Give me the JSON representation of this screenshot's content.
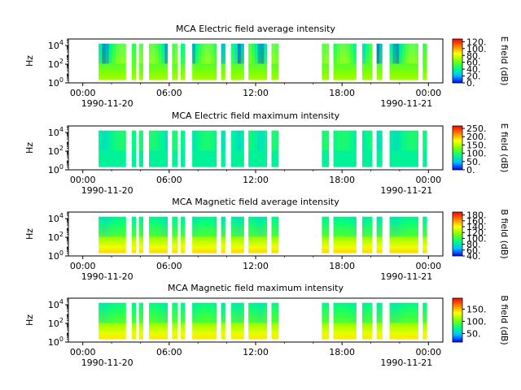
{
  "chart_data": [
    {
      "type": "heatmap",
      "title": "MCA  Electric field average intensity",
      "ylabel": "Hz",
      "yscale": "log",
      "yticks": [
        {
          "exp": 0,
          "label": "10^0"
        },
        {
          "exp": 2,
          "label": "10^2"
        },
        {
          "exp": 4,
          "label": "10^4"
        }
      ],
      "ylim_exp": [
        0,
        4.7
      ],
      "x_tick_labels": [
        "00:00",
        "06:00",
        "12:00",
        "18:00",
        "00:00"
      ],
      "x_tick_hours": [
        0,
        6,
        12,
        18,
        24
      ],
      "x_date_labels": [
        "1990-11-20",
        "1990-11-21"
      ],
      "xlim_hours": [
        -1,
        25
      ],
      "colorbar": {
        "label": "E field (dB)",
        "min": 0,
        "max": 128,
        "ticks": [
          "0.",
          "20.",
          "40.",
          "60.",
          "80.",
          "100.",
          "120."
        ],
        "tick_values": [
          0,
          20,
          40,
          60,
          80,
          100,
          120
        ]
      },
      "data_y_exp": [
        0.3,
        4.2
      ],
      "level_base": 0.55,
      "level_top": 0.3,
      "level_varia": 0.35,
      "colormap": [
        "#0000ff",
        "#00bfff",
        "#00ff80",
        "#80ff00",
        "#ffff00",
        "#ff8000",
        "#ff0000"
      ],
      "segments_hours": [
        [
          1.1,
          3.0
        ],
        [
          3.4,
          3.7
        ],
        [
          3.9,
          4.2
        ],
        [
          4.6,
          5.9
        ],
        [
          6.2,
          6.6
        ],
        [
          6.8,
          7.1
        ],
        [
          7.6,
          9.3
        ],
        [
          9.6,
          9.9
        ],
        [
          10.3,
          11.2
        ],
        [
          11.5,
          12.8
        ],
        [
          13.1,
          13.6
        ],
        [
          16.6,
          17.1
        ],
        [
          17.4,
          19.0
        ],
        [
          19.4,
          20.1
        ],
        [
          20.4,
          20.8
        ],
        [
          21.3,
          23.3
        ],
        [
          23.6,
          23.9
        ]
      ]
    },
    {
      "type": "heatmap",
      "title": "MCA  Electric field maximum intensity",
      "ylabel": "Hz",
      "yscale": "log",
      "yticks": [
        {
          "exp": 0,
          "label": "10^0"
        },
        {
          "exp": 2,
          "label": "10^2"
        },
        {
          "exp": 4,
          "label": "10^4"
        }
      ],
      "ylim_exp": [
        0,
        4.7
      ],
      "x_tick_labels": [
        "00:00",
        "06:00",
        "12:00",
        "18:00",
        "00:00"
      ],
      "x_tick_hours": [
        0,
        6,
        12,
        18,
        24
      ],
      "x_date_labels": [
        "1990-11-20",
        "1990-11-21"
      ],
      "xlim_hours": [
        -1,
        25
      ],
      "colorbar": {
        "label": "E field (dB)",
        "min": 0,
        "max": 265,
        "ticks": [
          "0.",
          "50.",
          "100.",
          "150.",
          "200.",
          "250."
        ],
        "tick_values": [
          0,
          50,
          100,
          150,
          200,
          250
        ]
      },
      "data_y_exp": [
        0.3,
        4.2
      ],
      "level_base": 0.3,
      "level_top": 0.3,
      "level_varia": 0.12,
      "colormap": [
        "#0000ff",
        "#00bfff",
        "#00ff80",
        "#80ff00",
        "#ffff00",
        "#ff8000",
        "#ff0000"
      ],
      "segments_hours": [
        [
          1.1,
          3.0
        ],
        [
          3.4,
          3.7
        ],
        [
          3.9,
          4.2
        ],
        [
          4.6,
          5.9
        ],
        [
          6.2,
          6.6
        ],
        [
          6.8,
          7.1
        ],
        [
          7.6,
          9.3
        ],
        [
          9.6,
          9.9
        ],
        [
          10.3,
          11.2
        ],
        [
          11.5,
          12.8
        ],
        [
          13.1,
          13.6
        ],
        [
          16.6,
          17.1
        ],
        [
          17.4,
          19.0
        ],
        [
          19.4,
          20.1
        ],
        [
          20.4,
          20.8
        ],
        [
          21.3,
          23.3
        ],
        [
          23.6,
          23.9
        ]
      ]
    },
    {
      "type": "heatmap",
      "title": "MCA  Magnetic field average intensity",
      "ylabel": "Hz",
      "yscale": "log",
      "yticks": [
        {
          "exp": 0,
          "label": "10^0"
        },
        {
          "exp": 2,
          "label": "10^2"
        },
        {
          "exp": 4,
          "label": "10^4"
        }
      ],
      "ylim_exp": [
        0,
        4.7
      ],
      "x_tick_labels": [
        "00:00",
        "06:00",
        "12:00",
        "18:00",
        "00:00"
      ],
      "x_tick_hours": [
        0,
        6,
        12,
        18,
        24
      ],
      "x_date_labels": [
        "1990-11-20",
        "1990-11-21"
      ],
      "xlim_hours": [
        -1,
        25
      ],
      "colorbar": {
        "label": "B field (dB)",
        "min": 40,
        "max": 190,
        "ticks": [
          "40.",
          "60.",
          "80.",
          "100.",
          "120.",
          "140.",
          "160.",
          "180."
        ],
        "tick_values": [
          40,
          60,
          80,
          100,
          120,
          140,
          160,
          180
        ]
      },
      "data_y_exp": [
        0.3,
        4.2
      ],
      "level_base": 0.72,
      "level_top": 0.28,
      "level_varia": 0.06,
      "colormap": [
        "#0000ff",
        "#00bfff",
        "#00ff80",
        "#80ff00",
        "#ffff00",
        "#ff8000",
        "#ff0000"
      ],
      "segments_hours": [
        [
          1.1,
          3.0
        ],
        [
          3.4,
          3.7
        ],
        [
          3.9,
          4.2
        ],
        [
          4.6,
          5.9
        ],
        [
          6.2,
          6.6
        ],
        [
          6.8,
          7.1
        ],
        [
          7.6,
          9.3
        ],
        [
          9.6,
          9.9
        ],
        [
          10.3,
          11.2
        ],
        [
          11.5,
          12.8
        ],
        [
          13.1,
          13.6
        ],
        [
          16.6,
          17.1
        ],
        [
          17.4,
          19.0
        ],
        [
          19.4,
          20.1
        ],
        [
          20.4,
          20.8
        ],
        [
          21.3,
          23.3
        ],
        [
          23.6,
          23.9
        ]
      ]
    },
    {
      "type": "heatmap",
      "title": "MCA  Magnetic field maximum intensity",
      "ylabel": "Hz",
      "yscale": "log",
      "yticks": [
        {
          "exp": 0,
          "label": "10^0"
        },
        {
          "exp": 2,
          "label": "10^2"
        },
        {
          "exp": 4,
          "label": "10^4"
        }
      ],
      "ylim_exp": [
        0,
        4.7
      ],
      "x_tick_labels": [
        "00:00",
        "06:00",
        "12:00",
        "18:00",
        "00:00"
      ],
      "x_tick_hours": [
        0,
        6,
        12,
        18,
        24
      ],
      "x_date_labels": [
        "1990-11-20",
        "1990-11-21"
      ],
      "xlim_hours": [
        -1,
        25
      ],
      "colorbar": {
        "label": "B field (dB)",
        "min": 15,
        "max": 195,
        "ticks": [
          "50.",
          "100.",
          "150."
        ],
        "tick_values": [
          50,
          100,
          150
        ]
      },
      "data_y_exp": [
        0.3,
        4.2
      ],
      "level_base": 0.7,
      "level_top": 0.3,
      "level_varia": 0.06,
      "colormap": [
        "#0000ff",
        "#00bfff",
        "#00ff80",
        "#80ff00",
        "#ffff00",
        "#ff8000",
        "#ff0000"
      ],
      "segments_hours": [
        [
          1.1,
          3.0
        ],
        [
          3.4,
          3.7
        ],
        [
          3.9,
          4.2
        ],
        [
          4.6,
          5.9
        ],
        [
          6.2,
          6.6
        ],
        [
          6.8,
          7.1
        ],
        [
          7.6,
          9.3
        ],
        [
          9.6,
          9.9
        ],
        [
          10.3,
          11.2
        ],
        [
          11.5,
          12.8
        ],
        [
          13.1,
          13.6
        ],
        [
          16.6,
          17.1
        ],
        [
          17.4,
          19.0
        ],
        [
          19.4,
          20.1
        ],
        [
          20.4,
          20.8
        ],
        [
          21.3,
          23.3
        ],
        [
          23.6,
          23.9
        ]
      ]
    }
  ]
}
